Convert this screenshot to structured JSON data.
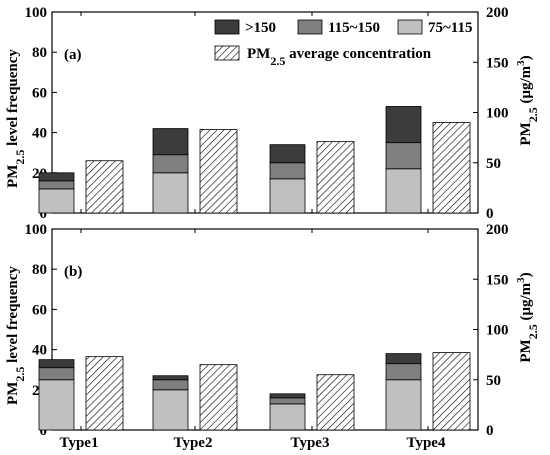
{
  "chart_data": {
    "type": "bar",
    "categories": [
      "Type1",
      "Type2",
      "Type3",
      "Type4"
    ],
    "y_left": {
      "label": "PM2.5 level frequency",
      "ylim": [
        0,
        100
      ],
      "ticks": [
        "0",
        "20",
        "40",
        "60",
        "80",
        "100"
      ]
    },
    "y_right": {
      "label": "PM2.5 (μg/m3)",
      "ylim": [
        0,
        200
      ],
      "ticks": [
        "0",
        "50",
        "100",
        "150",
        "200"
      ]
    },
    "legend": [
      {
        "name": ">150",
        "color": "#3c3c3c"
      },
      {
        "name": "115~150",
        "color": "#7f7f7f"
      },
      {
        "name": "75~115",
        "color": "#c0c0c0"
      },
      {
        "name": "PM2.5 average concentration",
        "pattern": "hatch"
      }
    ],
    "panels": [
      {
        "label": "(a)",
        "stack_series": [
          {
            "name": "75~115",
            "values": [
              12,
              20,
              17,
              22
            ]
          },
          {
            "name": "115~150",
            "values": [
              4,
              9,
              8,
              13
            ]
          },
          {
            "name": ">150",
            "values": [
              4,
              13,
              9,
              18
            ]
          }
        ],
        "avg_concentration": [
          52,
          83,
          71,
          90
        ]
      },
      {
        "label": "(b)",
        "stack_series": [
          {
            "name": "75~115",
            "values": [
              25,
              20,
              13,
              25
            ]
          },
          {
            "name": "115~150",
            "values": [
              6,
              5,
              3,
              8
            ]
          },
          {
            "name": ">150",
            "values": [
              4,
              2,
              2,
              5
            ]
          }
        ],
        "avg_concentration": [
          73,
          65,
          55,
          77
        ]
      }
    ]
  }
}
